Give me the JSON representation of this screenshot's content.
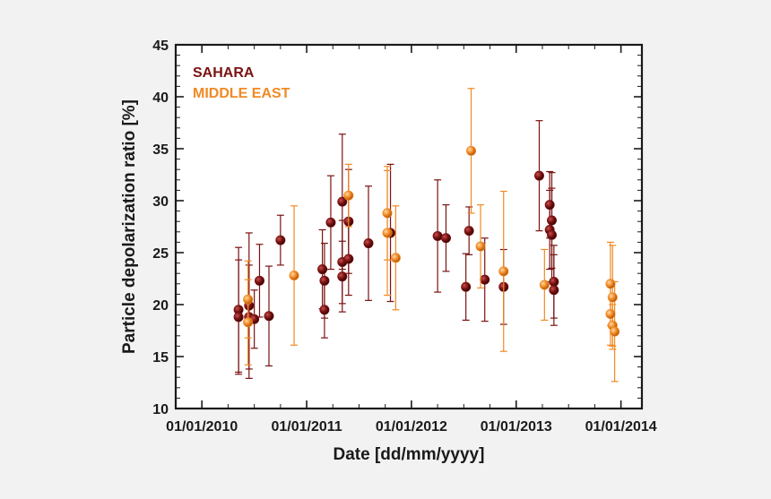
{
  "chart_data": {
    "type": "scatter",
    "title": "",
    "xlabel": "Date [dd/mm/yyyy]",
    "ylabel": "Particle depolarization ratio [%]",
    "xlim": [
      2009.75,
      2014.2
    ],
    "ylim": [
      10,
      45
    ],
    "x_ticks": [
      2010,
      2011,
      2012,
      2013,
      2014
    ],
    "x_tick_labels": [
      "01/01/2010",
      "01/01/2011",
      "01/01/2012",
      "01/01/2013",
      "01/01/2014"
    ],
    "y_ticks": [
      10,
      15,
      20,
      25,
      30,
      35,
      40,
      45
    ],
    "y_tick_labels": [
      "10",
      "15",
      "20",
      "25",
      "30",
      "35",
      "40",
      "45"
    ],
    "grid": false,
    "legend_position": "top-left",
    "series": [
      {
        "name": "SAHARA",
        "color": "#7a1212",
        "points": [
          {
            "x": 2010.35,
            "y": 19.5,
            "err": 6.0
          },
          {
            "x": 2010.35,
            "y": 18.8,
            "err": 5.5
          },
          {
            "x": 2010.45,
            "y": 19.9,
            "err": 7.0
          },
          {
            "x": 2010.45,
            "y": 18.8,
            "err": 5.0
          },
          {
            "x": 2010.5,
            "y": 18.6,
            "err": 2.8
          },
          {
            "x": 2010.55,
            "y": 22.3,
            "err": 3.5
          },
          {
            "x": 2010.64,
            "y": 18.9,
            "err": 4.8
          },
          {
            "x": 2010.75,
            "y": 26.2,
            "err": 2.4
          },
          {
            "x": 2011.15,
            "y": 23.4,
            "err": 3.8
          },
          {
            "x": 2011.17,
            "y": 22.3,
            "err": 3.6
          },
          {
            "x": 2011.17,
            "y": 19.5,
            "err": 2.7
          },
          {
            "x": 2011.23,
            "y": 27.9,
            "err": 4.5
          },
          {
            "x": 2011.34,
            "y": 29.9,
            "err": 6.5
          },
          {
            "x": 2011.34,
            "y": 24.1,
            "err": 4.0
          },
          {
            "x": 2011.34,
            "y": 22.7,
            "err": 3.4
          },
          {
            "x": 2011.4,
            "y": 28.0,
            "err": 5.0
          },
          {
            "x": 2011.4,
            "y": 24.4,
            "err": 3.5
          },
          {
            "x": 2011.59,
            "y": 25.9,
            "err": 5.5
          },
          {
            "x": 2011.8,
            "y": 26.9,
            "err": 6.6
          },
          {
            "x": 2012.25,
            "y": 26.6,
            "err": 5.4
          },
          {
            "x": 2012.33,
            "y": 26.4,
            "err": 3.2
          },
          {
            "x": 2012.52,
            "y": 21.7,
            "err": 3.2
          },
          {
            "x": 2012.55,
            "y": 27.1,
            "err": 2.3
          },
          {
            "x": 2012.7,
            "y": 22.4,
            "err": 4.0
          },
          {
            "x": 2012.88,
            "y": 21.7,
            "err": 3.6
          },
          {
            "x": 2013.22,
            "y": 32.4,
            "err": 5.3
          },
          {
            "x": 2013.32,
            "y": 29.6,
            "err": 3.2
          },
          {
            "x": 2013.32,
            "y": 27.2,
            "err": 3.8
          },
          {
            "x": 2013.34,
            "y": 28.1,
            "err": 4.6
          },
          {
            "x": 2013.34,
            "y": 26.7,
            "err": 4.5
          },
          {
            "x": 2013.36,
            "y": 22.2,
            "err": 3.5
          },
          {
            "x": 2013.36,
            "y": 21.4,
            "err": 3.4
          }
        ]
      },
      {
        "name": "MIDDLE EAST",
        "color": "#f08a24",
        "points": [
          {
            "x": 2010.44,
            "y": 20.5,
            "err": 3.7
          },
          {
            "x": 2010.44,
            "y": 18.3,
            "err": 4.1
          },
          {
            "x": 2010.88,
            "y": 22.8,
            "err": 6.7
          },
          {
            "x": 2011.4,
            "y": 30.5,
            "err": 3.0
          },
          {
            "x": 2011.77,
            "y": 28.8,
            "err": 4.5
          },
          {
            "x": 2011.77,
            "y": 26.9,
            "err": 6.0
          },
          {
            "x": 2011.85,
            "y": 24.5,
            "err": 5.0
          },
          {
            "x": 2012.57,
            "y": 34.8,
            "err": 6.0
          },
          {
            "x": 2012.66,
            "y": 25.6,
            "err": 4.0
          },
          {
            "x": 2012.88,
            "y": 23.2,
            "err": 7.7
          },
          {
            "x": 2013.27,
            "y": 21.9,
            "err": 3.4
          },
          {
            "x": 2013.9,
            "y": 22.0,
            "err": 4.0
          },
          {
            "x": 2013.9,
            "y": 19.1,
            "err": 3.0
          },
          {
            "x": 2013.92,
            "y": 20.7,
            "err": 5.0
          },
          {
            "x": 2013.92,
            "y": 18.0,
            "err": 2.0
          },
          {
            "x": 2013.94,
            "y": 17.4,
            "err": 4.8
          }
        ]
      }
    ]
  }
}
